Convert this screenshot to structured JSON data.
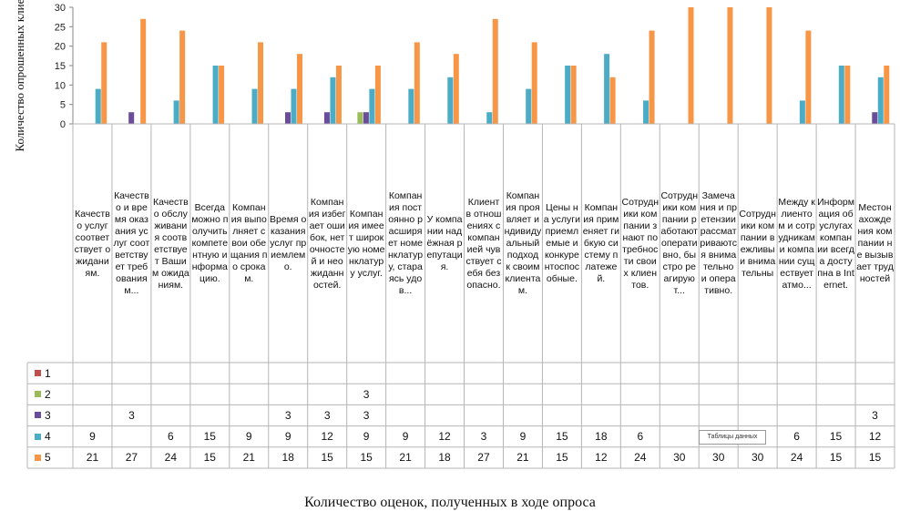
{
  "chart_data": {
    "type": "bar",
    "ylabel": "Количество опрошенных клиентов",
    "xlabel": "Количество оценок, полученных в ходе опроса",
    "ylim": [
      0,
      30
    ],
    "yticks": [
      0,
      5,
      10,
      15,
      20,
      25,
      30
    ],
    "legend_placement": "left, inside data table",
    "grid": false,
    "categories": [
      "Качество услуг соответствует ожиданиям.",
      "Качество и время оказания услуг соответствует требованиям...",
      "Качество обслуживания соответствует Вашим ожиданиям.",
      "Всегда можно получить компетентную информацию.",
      "Компания выполняет свои обещания по срокам.",
      "Время оказания услуг приемлемо.",
      "Компания избегает ошибок, неточностей и неожиданностей.",
      "Компания имеет широкую номенклатуру услуг.",
      "Компания постоянно расширяет номенклатуру, стараясь удов...",
      "У компании надёжная репутация.",
      "Клиент в отношениях с компанией чувствует себя безопасно.",
      "Компания проявляет индивидуальный подход к своим клиентам.",
      "Цены на услуги приемлемые и конкурентоспособные.",
      "Компания применяет гибкую систему платежей.",
      "Сотрудники компании знают потребности своих клиентов.",
      "Сотрудники компании работают оперативно, быстро реагируют...",
      "Замечания и претензии рассматриваются внимательно и оперативно.",
      "Сотрудники компании вежливы и внимательны",
      "Между клиентом и сотрудниками компании существует атмо...",
      "Информация об услугах компании всегда доступна в Internet.",
      "Местонахождения компании не вызывает трудностей"
    ],
    "series": [
      {
        "name": "1",
        "color": "#c0504d",
        "values": [
          null,
          null,
          null,
          null,
          null,
          null,
          null,
          null,
          null,
          null,
          null,
          null,
          null,
          null,
          null,
          null,
          null,
          null,
          null,
          null,
          null
        ]
      },
      {
        "name": "2",
        "color": "#9bbb59",
        "values": [
          null,
          null,
          null,
          null,
          null,
          null,
          null,
          3,
          null,
          null,
          null,
          null,
          null,
          null,
          null,
          null,
          null,
          null,
          null,
          null,
          null
        ]
      },
      {
        "name": "3",
        "color": "#6b4c9a",
        "values": [
          null,
          3,
          null,
          null,
          null,
          3,
          3,
          3,
          null,
          null,
          null,
          null,
          null,
          null,
          null,
          null,
          null,
          null,
          null,
          null,
          3
        ]
      },
      {
        "name": "4",
        "color": "#4bacc6",
        "values": [
          9,
          null,
          6,
          15,
          9,
          9,
          12,
          9,
          9,
          12,
          3,
          9,
          15,
          18,
          6,
          null,
          null,
          null,
          6,
          15,
          12
        ]
      },
      {
        "name": "5",
        "color": "#f79646",
        "values": [
          21,
          27,
          24,
          15,
          21,
          18,
          15,
          15,
          21,
          18,
          27,
          21,
          15,
          12,
          24,
          30,
          30,
          30,
          24,
          15,
          15
        ]
      }
    ],
    "tooltip": "Таблицы данных"
  }
}
